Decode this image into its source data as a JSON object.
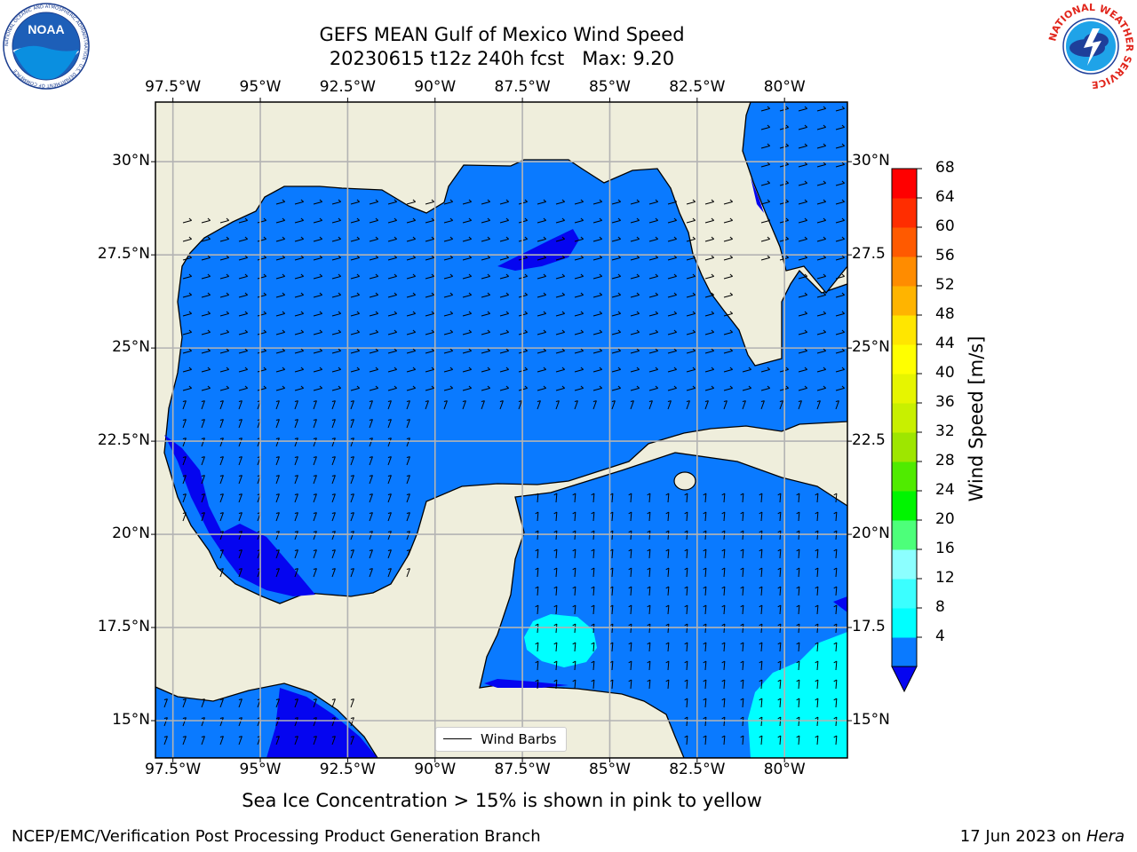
{
  "header": {
    "title_line1": "GEFS MEAN Gulf of Mexico Wind Speed",
    "title_line2": "20230615 t12z 240h fcst   Max: 9.20"
  },
  "logos": {
    "left_icon": "noaa-logo",
    "right_icon": "nws-logo",
    "noaa_text": "NOAA",
    "noaa_ring": "NATIONAL OCEANIC AND ATMOSPHERIC ADMINISTRATION · U.S. DEPARTMENT OF COMMERCE",
    "nws_ring": "NATIONAL WEATHER SERVICE"
  },
  "map": {
    "lon_labels": [
      "97.5°W",
      "95°W",
      "92.5°W",
      "90°W",
      "87.5°W",
      "85°W",
      "82.5°W",
      "80°W"
    ],
    "lat_labels_left": [
      "30°N",
      "27.5°N",
      "25°N",
      "22.5°N",
      "20°N",
      "17.5°N",
      "15°N"
    ],
    "lat_labels_right": [
      "30°N",
      "27.5",
      "25°N",
      "22.5",
      "20°N",
      "17.5",
      "15°N"
    ],
    "lon_range": [
      -98,
      -78.2
    ],
    "lat_range": [
      14,
      31.6
    ],
    "legend_label": "Wind Barbs",
    "colors": {
      "land": "#efeedc",
      "field_4_8": "#0a7aff",
      "field_below_4": "#0505f0",
      "field_8_12": "#00ffff",
      "grid": "#b3b3b3"
    }
  },
  "colorbar": {
    "title": "Wind Speed [m/s]",
    "ticks": [
      "68",
      "64",
      "60",
      "56",
      "52",
      "48",
      "44",
      "40",
      "36",
      "32",
      "28",
      "24",
      "20",
      "16",
      "12",
      "8",
      "4"
    ],
    "colors_bottom_to_top": [
      "#0a7aff",
      "#00ffff",
      "#3bffff",
      "#8cffff",
      "#4dff7a",
      "#00f500",
      "#50eb00",
      "#9ee600",
      "#c8f000",
      "#e6f500",
      "#ffff00",
      "#ffe600",
      "#ffb400",
      "#ff8c00",
      "#ff5a00",
      "#ff2d00",
      "#ff0000"
    ],
    "underflow_color": "#0505f0"
  },
  "footer": {
    "note": "Sea Ice Concentration > 15% is shown in pink to yellow",
    "left": "NCEP/EMC/Verification Post Processing Product Generation Branch",
    "right_date": "17 Jun 2023 on ",
    "right_host": "Hera"
  }
}
